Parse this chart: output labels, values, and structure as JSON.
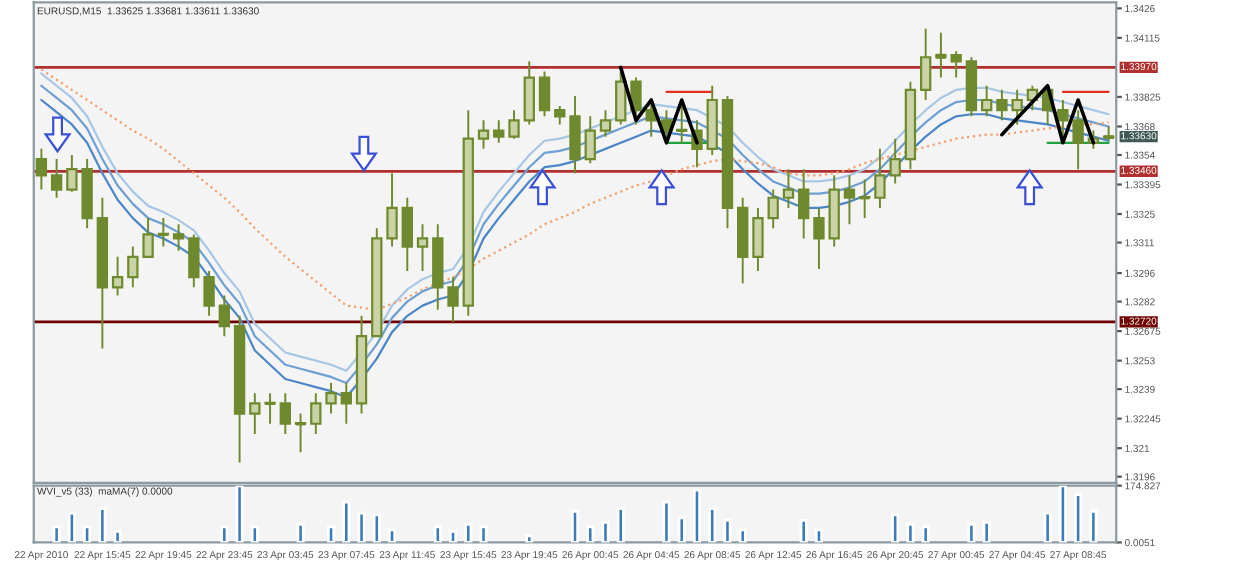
{
  "chart_data": [
    {
      "type": "candlestick",
      "title": "EURUSD,M15  1.33625 1.33681 1.33611 1.33630",
      "color": "#6f8a2e",
      "categories": [
        null,
        null,
        null,
        null,
        null,
        null,
        null,
        null,
        null,
        null,
        null,
        null,
        null,
        null,
        null,
        null,
        null,
        null,
        null,
        null,
        null,
        null,
        null,
        null,
        null,
        null,
        null,
        null,
        null,
        null,
        null,
        null,
        null,
        null,
        null,
        null,
        null,
        null,
        null,
        null,
        null,
        null,
        null,
        null,
        null,
        null,
        null,
        null,
        null,
        null,
        null,
        null,
        null,
        null,
        null,
        null,
        null,
        null,
        null,
        null,
        null,
        null,
        null,
        null,
        null,
        null,
        null,
        null,
        null,
        null,
        null
      ],
      "ohlc": [
        [
          1.3352,
          1.3357,
          1.3337,
          1.3344
        ],
        [
          1.3344,
          1.3352,
          1.3333,
          1.3337
        ],
        [
          1.3337,
          1.3354,
          1.3336,
          1.3347
        ],
        [
          1.3347,
          1.3352,
          1.3318,
          1.3323
        ],
        [
          1.3323,
          1.3333,
          1.3259,
          1.3289
        ],
        [
          1.3289,
          1.3304,
          1.3285,
          1.3294
        ],
        [
          1.3294,
          1.3309,
          1.3289,
          1.3304
        ],
        [
          1.3304,
          1.3323,
          1.3304,
          1.3315
        ],
        [
          1.3315,
          1.3323,
          1.3309,
          1.3315
        ],
        [
          1.3315,
          1.332,
          1.3307,
          1.3313
        ],
        [
          1.3313,
          1.3315,
          1.3289,
          1.3294
        ],
        [
          1.3294,
          1.3297,
          1.3275,
          1.328
        ],
        [
          1.328,
          1.3285,
          1.3265,
          1.327
        ],
        [
          1.327,
          1.3275,
          1.3203,
          1.3227
        ],
        [
          1.3227,
          1.3237,
          1.3217,
          1.3232
        ],
        [
          1.3232,
          1.3237,
          1.3222,
          1.3232
        ],
        [
          1.3232,
          1.3237,
          1.3217,
          1.3222
        ],
        [
          1.3222,
          1.3227,
          1.3208,
          1.3222
        ],
        [
          1.3222,
          1.3237,
          1.3217,
          1.3232
        ],
        [
          1.3232,
          1.3242,
          1.3227,
          1.3237
        ],
        [
          1.3237,
          1.3242,
          1.3222,
          1.3232
        ],
        [
          1.3232,
          1.3275,
          1.3227,
          1.3265
        ],
        [
          1.3265,
          1.3318,
          1.3265,
          1.3313
        ],
        [
          1.3313,
          1.3345,
          1.3309,
          1.3328
        ],
        [
          1.3328,
          1.3333,
          1.3297,
          1.3309
        ],
        [
          1.3309,
          1.332,
          1.3297,
          1.3313
        ],
        [
          1.3313,
          1.332,
          1.3278,
          1.3289
        ],
        [
          1.3289,
          1.3294,
          1.3272,
          1.328
        ],
        [
          1.328,
          1.3376,
          1.3275,
          1.3362
        ],
        [
          1.3362,
          1.3371,
          1.3357,
          1.3366
        ],
        [
          1.3366,
          1.3371,
          1.336,
          1.3363
        ],
        [
          1.3363,
          1.3376,
          1.3362,
          1.3371
        ],
        [
          1.3371,
          1.34,
          1.3369,
          1.3392
        ],
        [
          1.3392,
          1.3395,
          1.3373,
          1.3376
        ],
        [
          1.3376,
          1.3378,
          1.3369,
          1.3373
        ],
        [
          1.3373,
          1.3383,
          1.3345,
          1.3352
        ],
        [
          1.3352,
          1.3373,
          1.335,
          1.3366
        ],
        [
          1.3366,
          1.3376,
          1.3363,
          1.3371
        ],
        [
          1.3371,
          1.3395,
          1.3369,
          1.339
        ],
        [
          1.339,
          1.3392,
          1.3369,
          1.3376
        ],
        [
          1.3376,
          1.3381,
          1.3363,
          1.3371
        ],
        [
          1.3371,
          1.3376,
          1.3362,
          1.3366
        ],
        [
          1.3366,
          1.3378,
          1.336,
          1.3366
        ],
        [
          1.3366,
          1.3371,
          1.3348,
          1.3357
        ],
        [
          1.3357,
          1.3388,
          1.3354,
          1.3381
        ],
        [
          1.3381,
          1.3383,
          1.3318,
          1.3328
        ],
        [
          1.3328,
          1.3333,
          1.3291,
          1.3304
        ],
        [
          1.3304,
          1.3328,
          1.3297,
          1.3323
        ],
        [
          1.3323,
          1.3337,
          1.3318,
          1.3333
        ],
        [
          1.3333,
          1.3347,
          1.3328,
          1.3337
        ],
        [
          1.3337,
          1.3347,
          1.3313,
          1.3323
        ],
        [
          1.3323,
          1.3328,
          1.3298,
          1.3313
        ],
        [
          1.3313,
          1.3344,
          1.3309,
          1.3337
        ],
        [
          1.3337,
          1.3344,
          1.332,
          1.3333
        ],
        [
          1.3333,
          1.3342,
          1.3323,
          1.3333
        ],
        [
          1.3333,
          1.3357,
          1.3328,
          1.3344
        ],
        [
          1.3344,
          1.3362,
          1.334,
          1.3352
        ],
        [
          1.3352,
          1.339,
          1.3347,
          1.3386
        ],
        [
          1.3386,
          1.3416,
          1.3381,
          1.3402
        ],
        [
          1.3402,
          1.3414,
          1.3392,
          1.3403
        ],
        [
          1.3403,
          1.3405,
          1.3392,
          1.34
        ],
        [
          1.34,
          1.3402,
          1.3373,
          1.3376
        ],
        [
          1.3376,
          1.3388,
          1.3373,
          1.3381
        ],
        [
          1.3381,
          1.3386,
          1.3371,
          1.3376
        ],
        [
          1.3376,
          1.3386,
          1.3369,
          1.3381
        ],
        [
          1.3381,
          1.3388,
          1.3376,
          1.3386
        ],
        [
          1.3386,
          1.3388,
          1.3369,
          1.3376
        ],
        [
          1.3376,
          1.3381,
          1.3363,
          1.3371
        ],
        [
          1.3371,
          1.3376,
          1.3347,
          1.336
        ],
        [
          1.336,
          1.3366,
          1.3357,
          1.3362
        ],
        [
          1.33625,
          1.33681,
          1.33611,
          1.3363
        ]
      ],
      "series": [
        {
          "type": "line",
          "color": "#a9c6e4",
          "line_style": "solid",
          "values": [
            1.3394,
            1.3388,
            1.3382,
            1.3373,
            1.3358,
            1.3345,
            1.3336,
            1.3329,
            1.3326,
            1.3322,
            1.3317,
            1.3307,
            1.3296,
            1.3287,
            1.3271,
            1.3264,
            1.3257,
            1.3255,
            1.3253,
            1.3251,
            1.3248,
            1.3257,
            1.3267,
            1.328,
            1.3288,
            1.3293,
            1.3296,
            1.3298,
            1.3309,
            1.3326,
            1.3336,
            1.3345,
            1.3354,
            1.3361,
            1.3362,
            1.3364,
            1.3367,
            1.337,
            1.3373,
            1.3376,
            1.3379,
            1.3378,
            1.3377,
            1.3376,
            1.3372,
            1.3368,
            1.336,
            1.3353,
            1.3347,
            1.3344,
            1.3341,
            1.3341,
            1.3342,
            1.3344,
            1.3347,
            1.3353,
            1.3361,
            1.3369,
            1.3376,
            1.3382,
            1.3386,
            1.3387,
            1.3387,
            1.3385,
            1.3384,
            1.3383,
            1.3382,
            1.338,
            1.3378,
            1.3376,
            1.3374
          ]
        },
        {
          "type": "line",
          "color": "#6f9fd2",
          "line_style": "solid",
          "values": [
            1.3388,
            1.3382,
            1.3376,
            1.3367,
            1.3352,
            1.3339,
            1.333,
            1.3323,
            1.332,
            1.3316,
            1.3311,
            1.3301,
            1.329,
            1.3281,
            1.3265,
            1.3258,
            1.3251,
            1.3249,
            1.3247,
            1.3245,
            1.3242,
            1.3251,
            1.3261,
            1.3274,
            1.3282,
            1.3287,
            1.329,
            1.3292,
            1.3303,
            1.332,
            1.333,
            1.3339,
            1.3348,
            1.3355,
            1.3356,
            1.3358,
            1.3361,
            1.3364,
            1.3367,
            1.337,
            1.3373,
            1.3372,
            1.3371,
            1.337,
            1.3366,
            1.3362,
            1.3354,
            1.3347,
            1.3341,
            1.3338,
            1.3335,
            1.3335,
            1.3336,
            1.3338,
            1.3341,
            1.3347,
            1.3355,
            1.3363,
            1.337,
            1.3376,
            1.338,
            1.3381,
            1.3381,
            1.3379,
            1.3378,
            1.3377,
            1.3376,
            1.3374,
            1.3372,
            1.337,
            1.3368
          ]
        },
        {
          "type": "line",
          "color": "#4d86c6",
          "line_style": "solid",
          "values": [
            1.3381,
            1.3375,
            1.3369,
            1.336,
            1.3345,
            1.3332,
            1.3323,
            1.3316,
            1.3313,
            1.3309,
            1.3304,
            1.3294,
            1.3283,
            1.3274,
            1.3258,
            1.3251,
            1.3244,
            1.3242,
            1.324,
            1.3238,
            1.3235,
            1.3244,
            1.3254,
            1.3267,
            1.3275,
            1.328,
            1.3283,
            1.3285,
            1.3296,
            1.3313,
            1.3323,
            1.3332,
            1.3341,
            1.3348,
            1.3349,
            1.3351,
            1.3354,
            1.3357,
            1.336,
            1.3363,
            1.3366,
            1.3365,
            1.3364,
            1.3363,
            1.3359,
            1.3355,
            1.3347,
            1.334,
            1.3334,
            1.3331,
            1.3328,
            1.3328,
            1.3329,
            1.3331,
            1.3334,
            1.334,
            1.3348,
            1.3356,
            1.3363,
            1.3369,
            1.3373,
            1.3374,
            1.3374,
            1.3372,
            1.3371,
            1.337,
            1.3369,
            1.3367,
            1.3365,
            1.3363,
            1.3361
          ]
        },
        {
          "type": "line",
          "color": "#f0a070",
          "line_style": "dotted",
          "values": [
            1.3396,
            1.3391,
            1.3386,
            1.3381,
            1.3376,
            1.3371,
            1.3366,
            1.3362,
            1.3357,
            1.3351,
            1.3345,
            1.3339,
            1.3333,
            1.3326,
            1.3318,
            1.3311,
            1.3304,
            1.3298,
            1.3292,
            1.3286,
            1.328,
            1.3279,
            1.3278,
            1.3281,
            1.3284,
            1.3288,
            1.3291,
            1.3294,
            1.3298,
            1.3303,
            1.3307,
            1.3311,
            1.3315,
            1.332,
            1.3323,
            1.3326,
            1.333,
            1.3333,
            1.3336,
            1.3339,
            1.3341,
            1.3344,
            1.3347,
            1.3349,
            1.3351,
            1.3352,
            1.3351,
            1.335,
            1.3348,
            1.3345,
            1.3344,
            1.3344,
            1.3345,
            1.3347,
            1.335,
            1.3352,
            1.3354,
            1.3356,
            1.3358,
            1.336,
            1.3362,
            1.3363,
            1.3364,
            1.3364,
            1.3365,
            1.3366,
            1.3367,
            1.3368,
            1.3369,
            1.3369,
            1.337
          ]
        },
        {
          "type": "line",
          "color": "#000000",
          "line_style": "solid",
          "values": [
            null,
            null,
            null,
            null,
            null,
            null,
            null,
            null,
            null,
            null,
            null,
            null,
            null,
            null,
            null,
            null,
            null,
            null,
            null,
            null,
            null,
            null,
            null,
            null,
            null,
            null,
            null,
            null,
            null,
            null,
            null,
            null,
            null,
            null,
            null,
            null,
            null,
            null,
            1.3397,
            1.3371,
            1.3381,
            1.336,
            1.3381,
            1.336,
            null,
            null,
            null,
            null,
            null,
            null,
            null,
            null,
            null,
            null,
            null,
            null,
            null,
            null,
            null,
            null,
            null,
            null,
            null,
            1.3364,
            1.3372,
            1.338,
            1.3388,
            1.336,
            1.3381,
            1.336,
            null
          ]
        },
        {
          "type": "line",
          "color": "#e03020",
          "line_style": "solid",
          "values": [
            null,
            null,
            null,
            null,
            null,
            null,
            null,
            null,
            null,
            null,
            null,
            null,
            null,
            null,
            null,
            null,
            null,
            null,
            null,
            null,
            null,
            null,
            null,
            null,
            null,
            null,
            null,
            null,
            null,
            null,
            null,
            null,
            null,
            null,
            null,
            null,
            null,
            null,
            null,
            null,
            null,
            1.3385,
            1.3385,
            1.3385,
            1.3385,
            null,
            null,
            null,
            null,
            null,
            null,
            null,
            null,
            null,
            null,
            null,
            null,
            null,
            null,
            null,
            null,
            null,
            null,
            null,
            null,
            null,
            null,
            1.3385,
            1.3385,
            1.3385,
            1.3385
          ]
        },
        {
          "type": "line",
          "color": "#20a040",
          "line_style": "solid",
          "values": [
            null,
            null,
            null,
            null,
            null,
            null,
            null,
            null,
            null,
            null,
            null,
            null,
            null,
            null,
            null,
            null,
            null,
            null,
            null,
            null,
            null,
            null,
            null,
            null,
            null,
            null,
            null,
            null,
            null,
            null,
            null,
            null,
            null,
            null,
            null,
            null,
            null,
            null,
            null,
            null,
            null,
            1.336,
            1.336,
            1.336,
            1.336,
            null,
            null,
            null,
            null,
            null,
            null,
            null,
            null,
            null,
            null,
            null,
            null,
            null,
            null,
            null,
            null,
            null,
            null,
            null,
            null,
            null,
            1.336,
            1.336,
            1.336,
            1.336,
            1.336
          ]
        }
      ],
      "ref_lines": [
        {
          "axis": "y",
          "value": 1.3397,
          "label": "1.33970",
          "color": "#b03030"
        },
        {
          "axis": "y",
          "value": 1.3346,
          "label": "1.33460",
          "color": "#b03030"
        },
        {
          "axis": "y",
          "value": 1.3272,
          "label": "1.32720",
          "color": "#700000"
        }
      ],
      "annotations": [
        "1.33630"
      ],
      "ylim": [
        1.3193,
        1.3429
      ],
      "yticks": [
        1.3426,
        1.34115,
        1.33825,
        1.3368,
        1.3354,
        1.33395,
        1.3325,
        1.3311,
        1.3296,
        1.3282,
        1.32675,
        1.3253,
        1.3239,
        1.32245,
        1.321,
        1.3196
      ],
      "tick_labels": "y"
    },
    {
      "type": "bar",
      "title": "WVI_v5 (33)  maMA(7) 0.0000",
      "color": "#3d7ab8",
      "categories": [
        "22 Apr 2010",
        null,
        null,
        null,
        "22 Apr 15:45",
        null,
        null,
        null,
        "22 Apr 19:45",
        null,
        null,
        null,
        "22 Apr 23:45",
        null,
        null,
        null,
        "23 Apr 03:45",
        null,
        null,
        null,
        "23 Apr 07:45",
        null,
        null,
        null,
        "23 Apr 11:45",
        null,
        null,
        null,
        "23 Apr 15:45",
        null,
        null,
        null,
        "23 Apr 19:45",
        null,
        null,
        null,
        "26 Apr 00:45",
        null,
        null,
        null,
        "26 Apr 04:45",
        null,
        null,
        null,
        "26 Apr 08:45",
        null,
        null,
        null,
        "26 Apr 12:45",
        null,
        null,
        null,
        "26 Apr 16:45",
        null,
        null,
        null,
        "26 Apr 20:45",
        null,
        null,
        null,
        "27 Apr 00:45",
        null,
        null,
        null,
        "27 Apr 04:45",
        null,
        null,
        null,
        "27 Apr 08:45",
        null,
        null
      ],
      "values": [
        null,
        48,
        90,
        48,
        104,
        34,
        null,
        null,
        null,
        null,
        null,
        null,
        48,
        174,
        48,
        null,
        null,
        56,
        null,
        48,
        124,
        90,
        85,
        39,
        null,
        null,
        48,
        34,
        56,
        48,
        null,
        null,
        20,
        null,
        null,
        96,
        48,
        62,
        104,
        null,
        null,
        124,
        76,
        161,
        104,
        68,
        39,
        null,
        null,
        null,
        68,
        39,
        null,
        null,
        null,
        null,
        85,
        56,
        48,
        null,
        null,
        56,
        62,
        null,
        null,
        null,
        90,
        174,
        147,
        96,
        null
      ],
      "ylim": [
        0,
        174.827
      ],
      "yticks": [
        174.827,
        0.0051
      ]
    }
  ]
}
